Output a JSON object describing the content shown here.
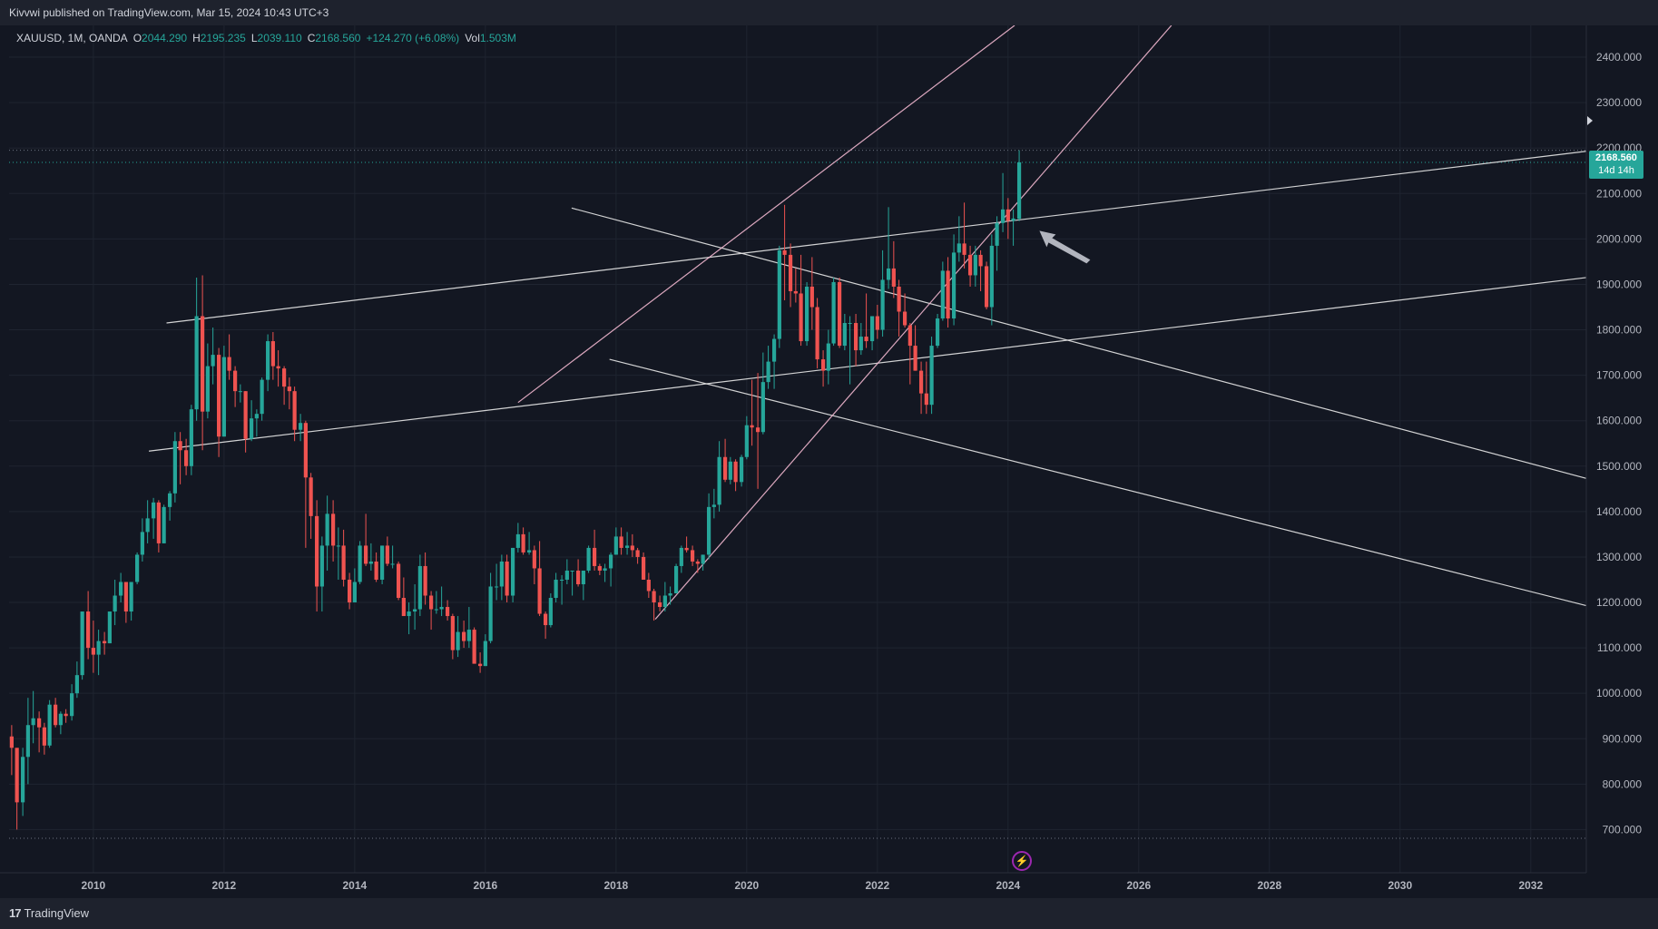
{
  "header": {
    "publish_text": "Kivvwi published on TradingView.com, Mar 15, 2024 10:43 UTC+3"
  },
  "legend": {
    "symbol": "XAUUSD, 1M, OANDA",
    "o_label": "O",
    "o_value": "2044.290",
    "h_label": "H",
    "h_value": "2195.235",
    "l_label": "L",
    "l_value": "2039.110",
    "c_label": "C",
    "c_value": "2168.560",
    "change": "+124.270 (+6.08%)",
    "vol_label": "Vol",
    "vol_value": "1.503M"
  },
  "price_tag": {
    "price": "2168.560",
    "countdown": "14d 14h"
  },
  "footer": {
    "brand": "TradingView"
  },
  "colors": {
    "up": "#26a69a",
    "down": "#ef5350",
    "background": "#131722",
    "grid": "#1f2430",
    "channel": "#f3b8d0",
    "trend": "#e8e8e8"
  },
  "chart_data": {
    "type": "candlestick",
    "symbol": "XAUUSD",
    "interval": "1M",
    "y_axis": {
      "ticks": [
        "700.000",
        "800.000",
        "900.000",
        "1000.000",
        "1100.000",
        "1200.000",
        "1300.000",
        "1400.000",
        "1500.000",
        "1600.000",
        "1700.000",
        "1800.000",
        "1900.000",
        "2000.000",
        "2100.000",
        "2200.000",
        "2300.000",
        "2400.000"
      ],
      "range": [
        605,
        2470
      ]
    },
    "x_axis": {
      "ticks": [
        "2010",
        "2012",
        "2014",
        "2016",
        "2018",
        "2020",
        "2022",
        "2024",
        "2026",
        "2028",
        "2030",
        "2032"
      ],
      "range": [
        2008.71,
        2032.85
      ]
    },
    "last_price": 2168.56,
    "high_line": 2195.235,
    "low_line": 681,
    "candles": [
      [
        2008.75,
        905,
        930,
        820,
        880
      ],
      [
        2008.83,
        880,
        870,
        700,
        760
      ],
      [
        2008.92,
        760,
        880,
        730,
        860
      ],
      [
        2009.0,
        860,
        990,
        800,
        930
      ],
      [
        2009.08,
        930,
        1005,
        890,
        945
      ],
      [
        2009.17,
        945,
        960,
        870,
        925
      ],
      [
        2009.25,
        925,
        935,
        865,
        885
      ],
      [
        2009.33,
        885,
        985,
        880,
        975
      ],
      [
        2009.42,
        975,
        990,
        925,
        930
      ],
      [
        2009.5,
        930,
        960,
        910,
        955
      ],
      [
        2009.58,
        955,
        965,
        935,
        950
      ],
      [
        2009.67,
        950,
        1020,
        940,
        1000
      ],
      [
        2009.75,
        1000,
        1070,
        990,
        1040
      ],
      [
        2009.83,
        1040,
        1180,
        1030,
        1180
      ],
      [
        2009.92,
        1180,
        1225,
        1075,
        1100
      ],
      [
        2010.0,
        1100,
        1160,
        1045,
        1085
      ],
      [
        2010.08,
        1085,
        1140,
        1040,
        1115
      ],
      [
        2010.17,
        1115,
        1135,
        1085,
        1110
      ],
      [
        2010.25,
        1110,
        1180,
        1110,
        1180
      ],
      [
        2010.33,
        1180,
        1250,
        1150,
        1215
      ],
      [
        2010.42,
        1215,
        1265,
        1200,
        1245
      ],
      [
        2010.5,
        1245,
        1245,
        1155,
        1180
      ],
      [
        2010.58,
        1180,
        1240,
        1160,
        1245
      ],
      [
        2010.67,
        1245,
        1310,
        1240,
        1305
      ],
      [
        2010.75,
        1305,
        1385,
        1290,
        1355
      ],
      [
        2010.83,
        1355,
        1425,
        1330,
        1385
      ],
      [
        2010.92,
        1385,
        1430,
        1340,
        1420
      ],
      [
        2011.0,
        1420,
        1425,
        1310,
        1330
      ],
      [
        2011.08,
        1330,
        1415,
        1330,
        1410
      ],
      [
        2011.17,
        1410,
        1445,
        1380,
        1440
      ],
      [
        2011.25,
        1440,
        1575,
        1420,
        1555
      ],
      [
        2011.33,
        1555,
        1575,
        1460,
        1535
      ],
      [
        2011.42,
        1535,
        1560,
        1480,
        1500
      ],
      [
        2011.5,
        1500,
        1635,
        1480,
        1625
      ],
      [
        2011.58,
        1625,
        1915,
        1600,
        1830
      ],
      [
        2011.67,
        1830,
        1920,
        1535,
        1620
      ],
      [
        2011.75,
        1620,
        1770,
        1605,
        1720
      ],
      [
        2011.83,
        1720,
        1805,
        1680,
        1745
      ],
      [
        2011.92,
        1745,
        1760,
        1520,
        1565
      ],
      [
        2012.0,
        1565,
        1765,
        1565,
        1740
      ],
      [
        2012.08,
        1740,
        1790,
        1690,
        1710
      ],
      [
        2012.17,
        1710,
        1720,
        1630,
        1665
      ],
      [
        2012.25,
        1665,
        1680,
        1640,
        1665
      ],
      [
        2012.33,
        1665,
        1665,
        1530,
        1560
      ],
      [
        2012.42,
        1560,
        1645,
        1555,
        1605
      ],
      [
        2012.5,
        1605,
        1625,
        1565,
        1615
      ],
      [
        2012.58,
        1615,
        1695,
        1600,
        1690
      ],
      [
        2012.67,
        1690,
        1790,
        1665,
        1775
      ],
      [
        2012.75,
        1775,
        1795,
        1690,
        1720
      ],
      [
        2012.83,
        1720,
        1755,
        1675,
        1715
      ],
      [
        2012.92,
        1715,
        1720,
        1635,
        1675
      ],
      [
        2013.0,
        1675,
        1695,
        1625,
        1665
      ],
      [
        2013.08,
        1665,
        1675,
        1555,
        1580
      ],
      [
        2013.17,
        1580,
        1615,
        1555,
        1595
      ],
      [
        2013.25,
        1595,
        1600,
        1320,
        1475
      ],
      [
        2013.33,
        1475,
        1485,
        1340,
        1390
      ],
      [
        2013.42,
        1390,
        1425,
        1180,
        1235
      ],
      [
        2013.5,
        1235,
        1345,
        1180,
        1325
      ],
      [
        2013.58,
        1325,
        1435,
        1270,
        1395
      ],
      [
        2013.67,
        1395,
        1425,
        1290,
        1325
      ],
      [
        2013.75,
        1325,
        1365,
        1250,
        1325
      ],
      [
        2013.83,
        1325,
        1360,
        1235,
        1250
      ],
      [
        2013.92,
        1250,
        1265,
        1185,
        1200
      ],
      [
        2014.0,
        1200,
        1275,
        1200,
        1245
      ],
      [
        2014.08,
        1245,
        1335,
        1240,
        1325
      ],
      [
        2014.17,
        1325,
        1395,
        1280,
        1285
      ],
      [
        2014.25,
        1285,
        1330,
        1270,
        1290
      ],
      [
        2014.33,
        1290,
        1310,
        1245,
        1250
      ],
      [
        2014.42,
        1250,
        1325,
        1240,
        1325
      ],
      [
        2014.5,
        1325,
        1345,
        1280,
        1285
      ],
      [
        2014.58,
        1285,
        1325,
        1275,
        1285
      ],
      [
        2014.67,
        1285,
        1290,
        1205,
        1210
      ],
      [
        2014.75,
        1210,
        1255,
        1180,
        1170
      ],
      [
        2014.83,
        1170,
        1200,
        1130,
        1180
      ],
      [
        2014.92,
        1180,
        1240,
        1140,
        1185
      ],
      [
        2015.0,
        1185,
        1305,
        1170,
        1280
      ],
      [
        2015.08,
        1280,
        1310,
        1195,
        1215
      ],
      [
        2015.17,
        1215,
        1225,
        1140,
        1185
      ],
      [
        2015.25,
        1185,
        1225,
        1175,
        1185
      ],
      [
        2015.33,
        1185,
        1235,
        1170,
        1190
      ],
      [
        2015.42,
        1190,
        1205,
        1160,
        1170
      ],
      [
        2015.5,
        1170,
        1175,
        1075,
        1095
      ],
      [
        2015.58,
        1095,
        1170,
        1080,
        1135
      ],
      [
        2015.67,
        1135,
        1160,
        1100,
        1115
      ],
      [
        2015.75,
        1115,
        1190,
        1100,
        1140
      ],
      [
        2015.83,
        1140,
        1145,
        1070,
        1065
      ],
      [
        2015.92,
        1065,
        1090,
        1045,
        1060
      ],
      [
        2016.0,
        1060,
        1130,
        1060,
        1115
      ],
      [
        2016.08,
        1115,
        1265,
        1110,
        1235
      ],
      [
        2016.17,
        1235,
        1285,
        1205,
        1235
      ],
      [
        2016.25,
        1235,
        1305,
        1205,
        1290
      ],
      [
        2016.33,
        1290,
        1305,
        1200,
        1215
      ],
      [
        2016.42,
        1215,
        1320,
        1200,
        1320
      ],
      [
        2016.5,
        1320,
        1375,
        1310,
        1350
      ],
      [
        2016.58,
        1350,
        1365,
        1305,
        1310
      ],
      [
        2016.67,
        1310,
        1355,
        1305,
        1315
      ],
      [
        2016.75,
        1315,
        1325,
        1240,
        1275
      ],
      [
        2016.83,
        1275,
        1335,
        1170,
        1175
      ],
      [
        2016.92,
        1175,
        1180,
        1120,
        1150
      ],
      [
        2017.0,
        1150,
        1220,
        1145,
        1210
      ],
      [
        2017.08,
        1210,
        1265,
        1200,
        1250
      ],
      [
        2017.17,
        1250,
        1260,
        1195,
        1250
      ],
      [
        2017.25,
        1250,
        1295,
        1240,
        1270
      ],
      [
        2017.33,
        1270,
        1270,
        1215,
        1270
      ],
      [
        2017.42,
        1270,
        1295,
        1235,
        1240
      ],
      [
        2017.5,
        1240,
        1270,
        1205,
        1270
      ],
      [
        2017.58,
        1270,
        1325,
        1265,
        1320
      ],
      [
        2017.67,
        1320,
        1360,
        1270,
        1280
      ],
      [
        2017.75,
        1280,
        1285,
        1260,
        1270
      ],
      [
        2017.83,
        1270,
        1285,
        1245,
        1275
      ],
      [
        2017.92,
        1275,
        1310,
        1235,
        1305
      ],
      [
        2018.0,
        1305,
        1365,
        1305,
        1345
      ],
      [
        2018.08,
        1345,
        1365,
        1305,
        1320
      ],
      [
        2018.17,
        1320,
        1355,
        1305,
        1325
      ],
      [
        2018.25,
        1325,
        1350,
        1300,
        1315
      ],
      [
        2018.33,
        1315,
        1320,
        1285,
        1300
      ],
      [
        2018.42,
        1300,
        1310,
        1250,
        1250
      ],
      [
        2018.5,
        1250,
        1265,
        1210,
        1225
      ],
      [
        2018.58,
        1225,
        1230,
        1160,
        1200
      ],
      [
        2018.67,
        1200,
        1215,
        1180,
        1190
      ],
      [
        2018.75,
        1190,
        1245,
        1180,
        1215
      ],
      [
        2018.83,
        1215,
        1235,
        1195,
        1220
      ],
      [
        2018.92,
        1220,
        1285,
        1220,
        1280
      ],
      [
        2019.0,
        1280,
        1325,
        1265,
        1320
      ],
      [
        2019.08,
        1320,
        1345,
        1310,
        1315
      ],
      [
        2019.17,
        1315,
        1325,
        1280,
        1290
      ],
      [
        2019.25,
        1290,
        1295,
        1265,
        1285
      ],
      [
        2019.33,
        1285,
        1305,
        1270,
        1305
      ],
      [
        2019.42,
        1305,
        1440,
        1295,
        1410
      ],
      [
        2019.5,
        1410,
        1450,
        1385,
        1415
      ],
      [
        2019.58,
        1415,
        1555,
        1400,
        1520
      ],
      [
        2019.67,
        1520,
        1560,
        1465,
        1470
      ],
      [
        2019.75,
        1470,
        1520,
        1460,
        1510
      ],
      [
        2019.83,
        1510,
        1515,
        1445,
        1465
      ],
      [
        2019.92,
        1465,
        1525,
        1455,
        1520
      ],
      [
        2020.0,
        1520,
        1610,
        1515,
        1590
      ],
      [
        2020.08,
        1590,
        1690,
        1545,
        1585
      ],
      [
        2020.17,
        1585,
        1705,
        1450,
        1575
      ],
      [
        2020.25,
        1575,
        1750,
        1570,
        1685
      ],
      [
        2020.33,
        1685,
        1765,
        1670,
        1730
      ],
      [
        2020.42,
        1730,
        1790,
        1670,
        1780
      ],
      [
        2020.5,
        1780,
        1985,
        1760,
        1975
      ],
      [
        2020.58,
        1975,
        2075,
        1865,
        1965
      ],
      [
        2020.67,
        1965,
        1990,
        1850,
        1885
      ],
      [
        2020.75,
        1885,
        1935,
        1860,
        1880
      ],
      [
        2020.83,
        1880,
        1965,
        1765,
        1775
      ],
      [
        2020.92,
        1775,
        1905,
        1765,
        1895
      ],
      [
        2021.0,
        1895,
        1960,
        1800,
        1850
      ],
      [
        2021.08,
        1850,
        1870,
        1715,
        1735
      ],
      [
        2021.17,
        1735,
        1755,
        1675,
        1710
      ],
      [
        2021.25,
        1710,
        1800,
        1680,
        1770
      ],
      [
        2021.33,
        1770,
        1915,
        1765,
        1905
      ],
      [
        2021.42,
        1905,
        1915,
        1760,
        1765
      ],
      [
        2021.5,
        1765,
        1835,
        1755,
        1815
      ],
      [
        2021.58,
        1815,
        1830,
        1680,
        1815
      ],
      [
        2021.67,
        1815,
        1835,
        1720,
        1755
      ],
      [
        2021.75,
        1755,
        1815,
        1745,
        1785
      ],
      [
        2021.83,
        1785,
        1880,
        1760,
        1775
      ],
      [
        2021.92,
        1775,
        1830,
        1755,
        1830
      ],
      [
        2022.0,
        1830,
        1855,
        1780,
        1800
      ],
      [
        2022.08,
        1800,
        1975,
        1785,
        1910
      ],
      [
        2022.17,
        1910,
        2070,
        1890,
        1935
      ],
      [
        2022.25,
        1935,
        1995,
        1870,
        1895
      ],
      [
        2022.33,
        1895,
        1910,
        1785,
        1840
      ],
      [
        2022.42,
        1840,
        1880,
        1805,
        1810
      ],
      [
        2022.5,
        1810,
        1815,
        1680,
        1765
      ],
      [
        2022.58,
        1765,
        1810,
        1710,
        1710
      ],
      [
        2022.67,
        1710,
        1730,
        1615,
        1660
      ],
      [
        2022.75,
        1660,
        1730,
        1615,
        1635
      ],
      [
        2022.83,
        1635,
        1785,
        1615,
        1765
      ],
      [
        2022.92,
        1765,
        1835,
        1760,
        1825
      ],
      [
        2023.0,
        1825,
        1950,
        1820,
        1930
      ],
      [
        2023.08,
        1930,
        1960,
        1805,
        1825
      ],
      [
        2023.17,
        1825,
        2010,
        1810,
        1970
      ],
      [
        2023.25,
        1970,
        2050,
        1950,
        1990
      ],
      [
        2023.33,
        1990,
        2080,
        1935,
        1965
      ],
      [
        2023.42,
        1965,
        1985,
        1895,
        1920
      ],
      [
        2023.5,
        1920,
        1985,
        1895,
        1965
      ],
      [
        2023.58,
        1965,
        1975,
        1885,
        1940
      ],
      [
        2023.67,
        1940,
        1950,
        1845,
        1850
      ],
      [
        2023.75,
        1850,
        2010,
        1810,
        1985
      ],
      [
        2023.83,
        1985,
        2050,
        1930,
        2035
      ],
      [
        2023.92,
        2035,
        2145,
        2015,
        2065
      ],
      [
        2024.0,
        2065,
        2090,
        2000,
        2040
      ],
      [
        2024.08,
        2040,
        2065,
        1985,
        2045
      ],
      [
        2024.17,
        2044.29,
        2195.235,
        2039.11,
        2168.56
      ]
    ],
    "trendlines": [
      {
        "kind": "trend",
        "from": [
          2011.12,
          1815
        ],
        "to": [
          2032.85,
          2193
        ]
      },
      {
        "kind": "trend",
        "from": [
          2010.85,
          1533
        ],
        "to": [
          2032.85,
          1915
        ]
      },
      {
        "kind": "trend",
        "from": [
          2017.32,
          2068
        ],
        "to": [
          2032.85,
          1473
        ]
      },
      {
        "kind": "trend",
        "from": [
          2017.9,
          1735
        ],
        "to": [
          2032.85,
          1193
        ]
      },
      {
        "kind": "channel",
        "from": [
          2016.5,
          1640
        ],
        "to": [
          2024.1,
          2470
        ]
      },
      {
        "kind": "channel",
        "from": [
          2018.6,
          1163
        ],
        "to": [
          2026.5,
          2470
        ]
      }
    ]
  }
}
